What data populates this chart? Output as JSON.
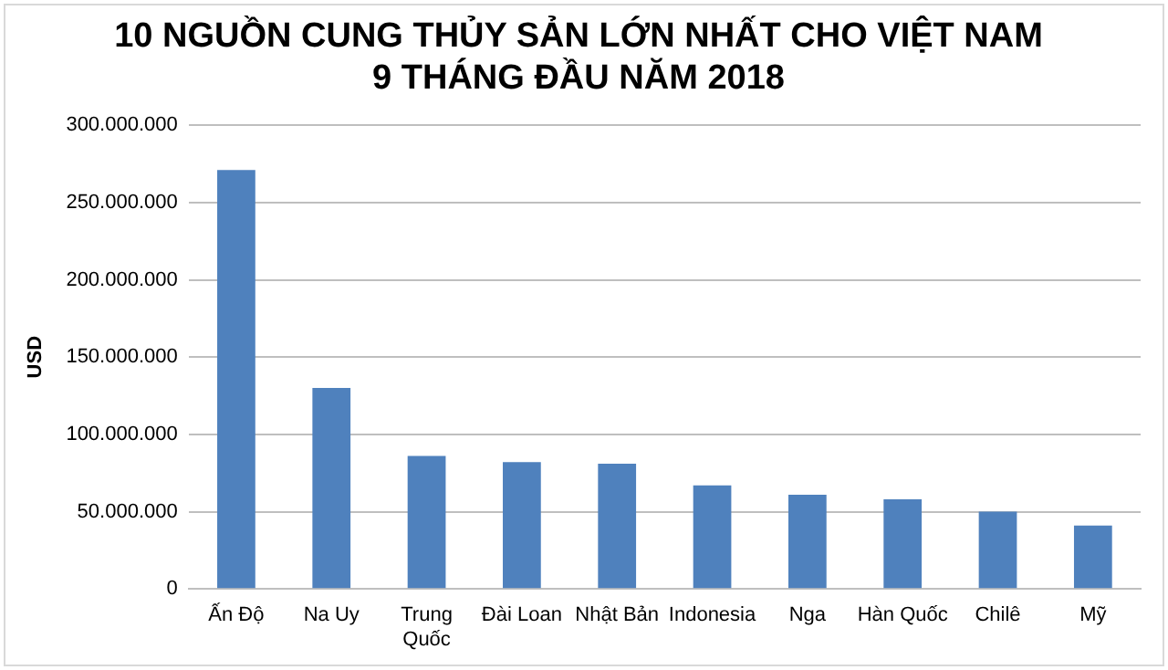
{
  "chart_data": {
    "type": "bar",
    "title": "10 NGUỒN CUNG THỦY SẢN LỚN NHẤT CHO VIỆT NAM\n9 THÁNG ĐẦU NĂM 2018",
    "ylabel": "USD",
    "categories": [
      "Ấn Độ",
      "Na Uy",
      "Trung Quốc",
      "Đài Loan",
      "Nhật Bản",
      "Indonesia",
      "Nga",
      "Hàn Quốc",
      "Chilê",
      "Mỹ"
    ],
    "values": [
      271000000,
      130000000,
      86000000,
      82000000,
      81000000,
      67000000,
      61000000,
      58000000,
      50000000,
      41000000
    ],
    "color": "#4f81bd",
    "ylim": [
      0,
      300000000
    ],
    "yticks": [
      0,
      {
        "value": 50000000,
        "label": "50.000.000"
      },
      {
        "value": 100000000,
        "label": "100.000.000"
      },
      {
        "value": 150000000,
        "label": "150.000.000"
      },
      {
        "value": 200000000,
        "label": "200.000.000"
      },
      {
        "value": 250000000,
        "label": "250.000.000"
      },
      {
        "value": 300000000,
        "label": "300.000.000"
      }
    ],
    "grid": "y",
    "legend": false
  }
}
